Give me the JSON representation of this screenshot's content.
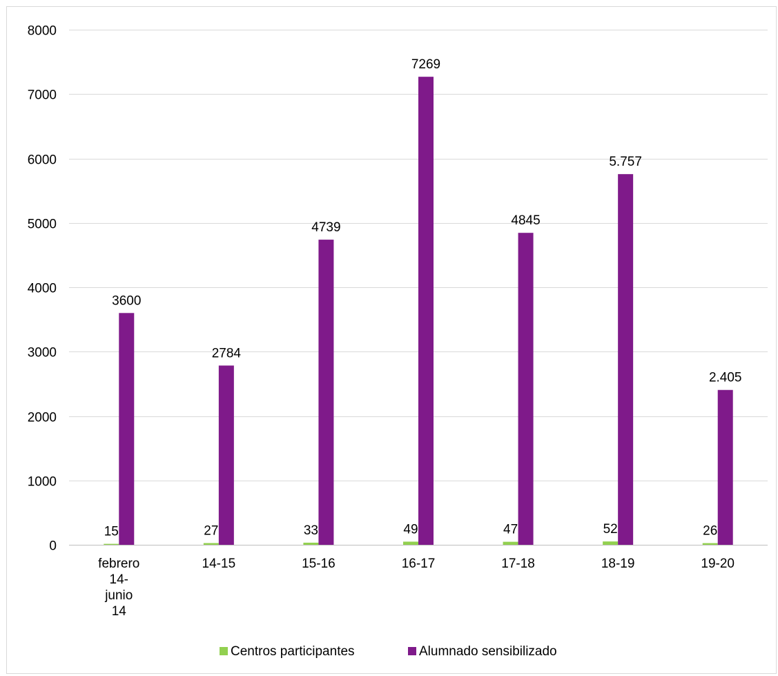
{
  "chart_data": {
    "type": "bar",
    "title": "",
    "xlabel": "",
    "ylabel": "",
    "categories": [
      [
        "febrero",
        "14-",
        "junio",
        "14"
      ],
      [
        "14-15"
      ],
      [
        "15-16"
      ],
      [
        "16-17"
      ],
      [
        "17-18"
      ],
      [
        "18-19"
      ],
      [
        "19-20"
      ]
    ],
    "series": [
      {
        "name": "Centros participantes",
        "color": "#92d050",
        "values": [
          15,
          27,
          33,
          49,
          47,
          52,
          26
        ],
        "labels": [
          "15",
          "27",
          "33",
          "49",
          "47",
          "52",
          "26"
        ]
      },
      {
        "name": "Alumnado sensibilizado",
        "color": "#7f1a8a",
        "values": [
          3600,
          2784,
          4739,
          7269,
          4845,
          5757,
          2405
        ],
        "labels": [
          "3600",
          "2784",
          "4739",
          "7269",
          "4845",
          "5.757",
          "2.405"
        ]
      }
    ],
    "ylim": [
      0,
      8000
    ],
    "yticks": [
      0,
      1000,
      2000,
      3000,
      4000,
      5000,
      6000,
      7000,
      8000
    ],
    "grid": true,
    "legend": "bottom"
  }
}
